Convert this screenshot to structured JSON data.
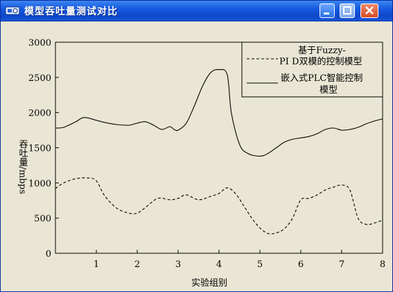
{
  "window": {
    "title": "模型吞吐量测试对比",
    "buttons": [
      "minimize",
      "maximize",
      "close"
    ]
  },
  "colors": {
    "titlebar": "#1659e0",
    "plot_background": "#e9e6d5",
    "close_button": "#d94a26"
  },
  "chart_data": {
    "type": "line",
    "xlabel": "实验组别",
    "ylabel": "吞吐量/mbps",
    "xlim": [
      0,
      8
    ],
    "ylim": [
      0,
      3000
    ],
    "xticks": [
      "1",
      "2",
      "3",
      "4",
      "5",
      "6",
      "7",
      "8"
    ],
    "yticks": [
      "0",
      "500",
      "1000",
      "1500",
      "2000",
      "2500",
      "3000"
    ],
    "grid": false,
    "legend_position": "top-right",
    "legend": {
      "dashed_line1": "基于Fuzzy-",
      "dashed_line2": "PI D双模的控制模型",
      "solid_line1": "嵌入式PLC智能控制",
      "solid_line2": "模型"
    },
    "series": [
      {
        "name": "基于Fuzzy-PI D双模的控制模型",
        "style": "dashed",
        "x": [
          0,
          0.2,
          0.5,
          0.8,
          1.0,
          1.2,
          1.5,
          1.8,
          2.0,
          2.2,
          2.5,
          2.8,
          3.0,
          3.2,
          3.5,
          3.8,
          4.0,
          4.2,
          4.4,
          4.6,
          4.8,
          5.0,
          5.2,
          5.4,
          5.6,
          5.8,
          6.0,
          6.2,
          6.4,
          6.6,
          6.8,
          7.0,
          7.2,
          7.4,
          7.6,
          7.8,
          8.0
        ],
        "y": [
          920,
          1000,
          1060,
          1070,
          1030,
          820,
          640,
          570,
          570,
          650,
          780,
          760,
          780,
          830,
          760,
          810,
          850,
          930,
          850,
          680,
          500,
          360,
          280,
          290,
          350,
          500,
          760,
          780,
          830,
          900,
          940,
          970,
          900,
          500,
          410,
          430,
          470
        ]
      },
      {
        "name": "嵌入式PLC智能控制模型",
        "style": "solid",
        "x": [
          0,
          0.2,
          0.5,
          0.7,
          1.0,
          1.2,
          1.5,
          1.8,
          2.0,
          2.2,
          2.4,
          2.6,
          2.8,
          2.9,
          3.0,
          3.2,
          3.4,
          3.6,
          3.8,
          4.0,
          4.2,
          4.3,
          4.5,
          4.7,
          5.0,
          5.2,
          5.4,
          5.6,
          5.8,
          6.0,
          6.2,
          6.4,
          6.6,
          6.8,
          7.0,
          7.2,
          7.4,
          7.6,
          7.8,
          8.0
        ],
        "y": [
          1780,
          1790,
          1870,
          1930,
          1890,
          1860,
          1830,
          1820,
          1850,
          1870,
          1820,
          1760,
          1800,
          1760,
          1750,
          1850,
          2100,
          2380,
          2570,
          2610,
          2540,
          2000,
          1550,
          1420,
          1380,
          1420,
          1500,
          1580,
          1620,
          1640,
          1660,
          1700,
          1760,
          1780,
          1750,
          1760,
          1790,
          1840,
          1880,
          1910
        ]
      }
    ]
  }
}
